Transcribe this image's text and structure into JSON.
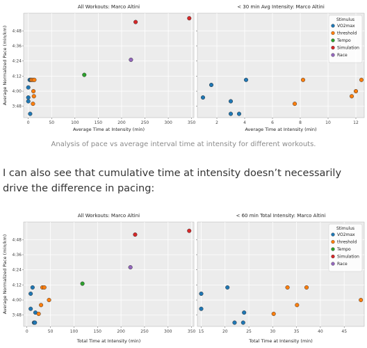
{
  "caption": "Analysis of pace vs average interval time at intensity for different workouts.",
  "paragraph": "I can also see that cumulative time at intensity doesn’t necessarily drive the difference in pacing:",
  "colors": {
    "VO2max": "#1f77b4",
    "threshold": "#ff7f0e",
    "Tempo": "#2ca02c",
    "Simulation": "#d62728",
    "Race": "#9467bd"
  },
  "chart_data": [
    {
      "type": "scatter",
      "title": "All Workouts: Marco Altini",
      "xlabel": "Average Time at Intensity (min)",
      "ylabel": "Average Normalized Pace (min/km)",
      "xlim": [
        -10,
        355
      ],
      "ylim": [
        219,
        302
      ],
      "xticks": [
        0,
        50,
        100,
        150,
        200,
        250,
        300,
        350
      ],
      "yticks": [
        228,
        240,
        252,
        264,
        276,
        288
      ],
      "yticklabels": [
        "3:48",
        "4:00",
        "4:12",
        "4:24",
        "4:36",
        "4:48"
      ],
      "grid": true,
      "series": [
        {
          "name": "VO2max",
          "points": [
            [
              0,
              243
            ],
            [
              0,
              235
            ],
            [
              0,
              232
            ],
            [
              3,
              249
            ],
            [
              4,
              222
            ],
            [
              5,
              249
            ]
          ]
        },
        {
          "name": "threshold",
          "points": [
            [
              7,
              249
            ],
            [
              10,
              249
            ],
            [
              10,
              230
            ],
            [
              11,
              240
            ],
            [
              12,
              236
            ],
            [
              13,
              249
            ]
          ]
        },
        {
          "name": "Tempo",
          "points": [
            [
              120,
              253
            ]
          ]
        },
        {
          "name": "Simulation",
          "points": [
            [
              230,
              295
            ],
            [
              345,
              298
            ]
          ]
        },
        {
          "name": "Race",
          "points": [
            [
              220,
              265
            ]
          ]
        }
      ]
    },
    {
      "type": "scatter",
      "title": "< 30 min Avg Intensity: Marco Altini",
      "xlabel": "Average Time at Intensity (min)",
      "ylabel": "",
      "xlim": [
        0.6,
        12.6
      ],
      "ylim": [
        219,
        302
      ],
      "xticks": [
        2,
        4,
        6,
        8,
        10,
        12
      ],
      "yticks": [
        228,
        240,
        252,
        264,
        276,
        288
      ],
      "grid": true,
      "legend": {
        "title": "Stimulus",
        "position": "top-right"
      },
      "series": [
        {
          "name": "VO2max",
          "points": [
            [
              1.0,
              235
            ],
            [
              1.6,
              245
            ],
            [
              3.0,
              222
            ],
            [
              3.0,
              232
            ],
            [
              3.6,
              222
            ],
            [
              4.1,
              249
            ]
          ]
        },
        {
          "name": "threshold",
          "points": [
            [
              7.6,
              230
            ],
            [
              8.2,
              249
            ],
            [
              11.7,
              236
            ],
            [
              12.0,
              240
            ],
            [
              12.4,
              249
            ]
          ]
        },
        {
          "name": "Tempo",
          "points": []
        },
        {
          "name": "Simulation",
          "points": []
        },
        {
          "name": "Race",
          "points": []
        }
      ]
    },
    {
      "type": "scatter",
      "title": "All Workouts: Marco Altini",
      "xlabel": "Total Time at Intensity (min)",
      "ylabel": "Average Normalized Pace (min/km)",
      "xlim": [
        -7,
        355
      ],
      "ylim": [
        219,
        302
      ],
      "xticks": [
        0,
        50,
        100,
        150,
        200,
        250,
        300,
        350
      ],
      "yticks": [
        228,
        240,
        252,
        264,
        276,
        288
      ],
      "yticklabels": [
        "3:48",
        "4:00",
        "4:12",
        "4:24",
        "4:36",
        "4:48"
      ],
      "grid": true,
      "series": [
        {
          "name": "VO2max",
          "points": [
            [
              8,
              233
            ],
            [
              8,
              245
            ],
            [
              12,
              250
            ],
            [
              15,
              222
            ],
            [
              17,
              222
            ],
            [
              18,
              230
            ]
          ]
        },
        {
          "name": "threshold",
          "points": [
            [
              25,
              229
            ],
            [
              30,
              236
            ],
            [
              33,
              250
            ],
            [
              37,
              250
            ],
            [
              47,
              240
            ]
          ]
        },
        {
          "name": "Tempo",
          "points": [
            [
              118,
              253
            ]
          ]
        },
        {
          "name": "Simulation",
          "points": [
            [
              230,
              292
            ],
            [
              345,
              295
            ]
          ]
        },
        {
          "name": "Race",
          "points": [
            [
              220,
              266
            ]
          ]
        }
      ]
    },
    {
      "type": "scatter",
      "title": "< 60 min Total Intensity: Marco Altini",
      "xlabel": "Total Time at Intensity (min)",
      "ylabel": "",
      "xlim": [
        14.2,
        49.2
      ],
      "ylim": [
        219,
        302
      ],
      "xticks": [
        15,
        20,
        25,
        30,
        35,
        40,
        45
      ],
      "yticks": [
        228,
        240,
        252,
        264,
        276,
        288
      ],
      "grid": true,
      "legend": {
        "title": "Stimulus",
        "position": "top-right"
      },
      "series": [
        {
          "name": "VO2max",
          "points": [
            [
              15,
              233
            ],
            [
              15,
              245
            ],
            [
              20.5,
              250
            ],
            [
              22,
              222
            ],
            [
              23.8,
              222
            ],
            [
              24,
              230
            ]
          ]
        },
        {
          "name": "threshold",
          "points": [
            [
              30.2,
              229
            ],
            [
              33.1,
              250
            ],
            [
              35.1,
              236
            ],
            [
              37.1,
              250
            ],
            [
              48.5,
              240
            ]
          ]
        },
        {
          "name": "Tempo",
          "points": []
        },
        {
          "name": "Simulation",
          "points": []
        },
        {
          "name": "Race",
          "points": []
        }
      ]
    }
  ]
}
